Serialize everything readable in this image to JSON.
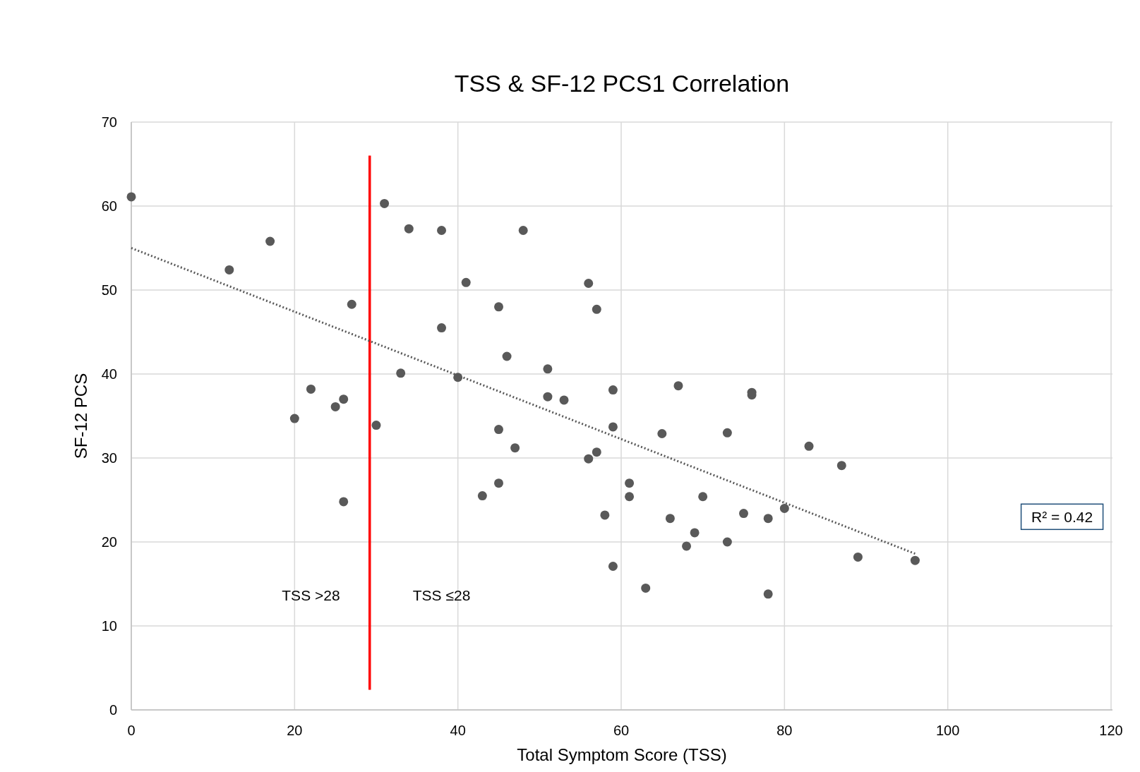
{
  "chart_data": {
    "type": "scatter",
    "title": "TSS & SF-12 PCS1 Correlation",
    "xlabel": "Total Symptom Score (TSS)",
    "ylabel": "SF-12 PCS",
    "xlim": [
      0,
      120
    ],
    "xticks": [
      0,
      20,
      40,
      60,
      80,
      100,
      120
    ],
    "ylim": [
      0,
      70
    ],
    "yticks": [
      0,
      10,
      20,
      30,
      40,
      50,
      60,
      70
    ],
    "grid": true,
    "marker": "circle",
    "series": [
      {
        "color": "#595959",
        "x": [
          0,
          12,
          17,
          20,
          22,
          25,
          26,
          26,
          27,
          30,
          31,
          33,
          34,
          38,
          38,
          40,
          41,
          43,
          45,
          45,
          45,
          46,
          47,
          48,
          51,
          51,
          53,
          56,
          56,
          57,
          57,
          58,
          59,
          59,
          59,
          61,
          61,
          63,
          65,
          66,
          67,
          68,
          69,
          70,
          73,
          73,
          75,
          76,
          76,
          78,
          78,
          80,
          83,
          87,
          89,
          96
        ],
        "values": [
          61.1,
          52.4,
          55.8,
          34.7,
          38.2,
          36.1,
          37.0,
          24.8,
          48.3,
          33.9,
          60.3,
          40.1,
          57.3,
          57.1,
          45.5,
          39.6,
          50.9,
          25.5,
          48.0,
          33.4,
          27.0,
          42.1,
          31.2,
          57.1,
          40.6,
          37.3,
          36.9,
          50.8,
          29.9,
          47.7,
          30.7,
          23.2,
          38.1,
          33.7,
          17.1,
          27.0,
          25.4,
          14.5,
          32.9,
          22.8,
          38.6,
          19.5,
          21.1,
          25.4,
          33.0,
          20.0,
          23.4,
          37.8,
          37.5,
          22.8,
          13.8,
          24.0,
          31.4,
          29.1,
          18.2,
          17.8
        ]
      },
      {
        "type": "line",
        "color": "#595959",
        "line_style": "dotted",
        "marker": "none",
        "x": [
          0,
          96
        ],
        "values": [
          55,
          18.6
        ]
      }
    ],
    "ref_lines": [
      {
        "axis": "x",
        "value": 29.2,
        "color": "#ff0000",
        "line_style": "solid"
      }
    ],
    "annotations": [
      "TSS >28",
      "TSS ≤28",
      "R² = 0.42"
    ],
    "tick_labels": "xy"
  }
}
